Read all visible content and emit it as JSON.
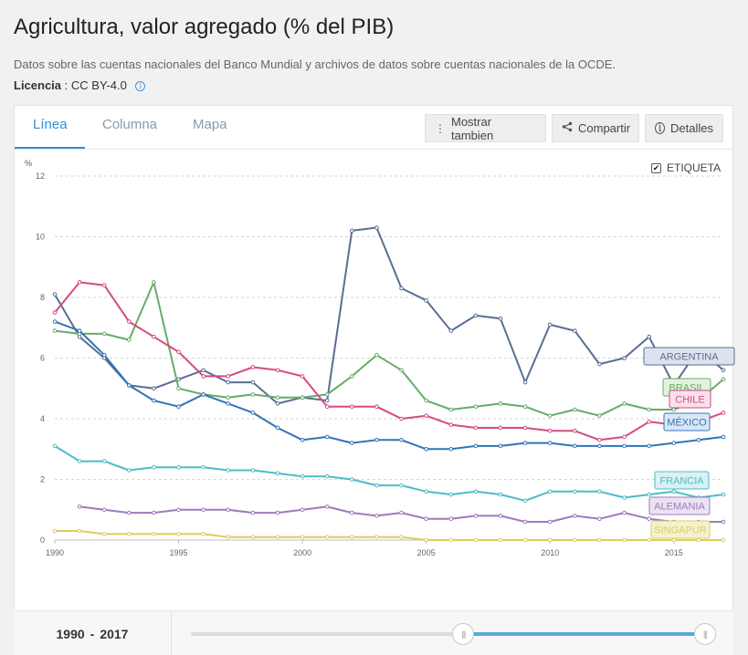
{
  "header": {
    "title": "Agricultura, valor agregado (% del PIB)",
    "description": "Datos sobre las cuentas nacionales del Banco Mundial y archivos de datos sobre cuentas nacionales de la OCDE.",
    "license_label": "Licencia",
    "license_value": ": CC BY-4.0"
  },
  "tabs": [
    {
      "label": "Línea",
      "active": true
    },
    {
      "label": "Columna",
      "active": false
    },
    {
      "label": "Mapa",
      "active": false
    }
  ],
  "toolbar": {
    "show_also": "Mostrar tambien",
    "share": "Compartir",
    "details": "Detalles"
  },
  "label_toggle": {
    "text": "ETIQUETA",
    "checked": true
  },
  "footer": {
    "range_start": "1990",
    "range_sep": "-",
    "range_end": "2017",
    "slider_start_fraction": 0.53,
    "slider_end_fraction": 1.0
  },
  "chart_data": {
    "type": "line",
    "title": "",
    "ylabel": "%",
    "xlabel": "",
    "ylim": [
      0,
      12
    ],
    "xlim": [
      1990,
      2017
    ],
    "yticks": [
      0,
      2,
      4,
      6,
      8,
      10,
      12
    ],
    "xticks": [
      1990,
      1995,
      2000,
      2005,
      2010,
      2015
    ],
    "grid": true,
    "x": [
      1990,
      1991,
      1992,
      1993,
      1994,
      1995,
      1996,
      1997,
      1998,
      1999,
      2000,
      2001,
      2002,
      2003,
      2004,
      2005,
      2006,
      2007,
      2008,
      2009,
      2010,
      2011,
      2012,
      2013,
      2014,
      2015,
      2016,
      2017
    ],
    "series": [
      {
        "name": "ARGENTINA",
        "color": "#5a6e94",
        "label_fill": "#dde3ee",
        "values": [
          8.1,
          6.7,
          6.0,
          5.1,
          5.0,
          5.3,
          5.6,
          5.2,
          5.2,
          4.5,
          4.7,
          4.6,
          10.2,
          10.3,
          8.3,
          7.9,
          6.9,
          7.4,
          7.3,
          5.2,
          7.1,
          6.9,
          5.8,
          6.0,
          6.7,
          5.1,
          6.3,
          5.6
        ]
      },
      {
        "name": "BRASIL",
        "color": "#67ab67",
        "label_fill": "#e3f1df",
        "values": [
          6.9,
          6.8,
          6.8,
          6.6,
          8.5,
          5.0,
          4.8,
          4.7,
          4.8,
          4.7,
          4.7,
          4.8,
          5.4,
          6.1,
          5.6,
          4.6,
          4.3,
          4.4,
          4.5,
          4.4,
          4.1,
          4.3,
          4.1,
          4.5,
          4.3,
          4.3,
          4.6,
          5.3
        ]
      },
      {
        "name": "CHILE",
        "color": "#d64a83",
        "label_fill": "#f9e0ea",
        "values": [
          7.5,
          8.5,
          8.4,
          7.2,
          6.7,
          6.2,
          5.4,
          5.4,
          5.7,
          5.6,
          5.4,
          4.4,
          4.4,
          4.4,
          4.0,
          4.1,
          3.8,
          3.7,
          3.7,
          3.7,
          3.6,
          3.6,
          3.3,
          3.4,
          3.9,
          3.8,
          3.9,
          4.2
        ]
      },
      {
        "name": "MÉXICO",
        "color": "#3274b8",
        "label_fill": "#d9e7f5",
        "values": [
          7.2,
          6.9,
          6.1,
          5.1,
          4.6,
          4.4,
          4.8,
          4.5,
          4.2,
          3.7,
          3.3,
          3.4,
          3.2,
          3.3,
          3.3,
          3.0,
          3.0,
          3.1,
          3.1,
          3.2,
          3.2,
          3.1,
          3.1,
          3.1,
          3.1,
          3.2,
          3.3,
          3.4
        ]
      },
      {
        "name": "FRANCIA",
        "color": "#4cbcc8",
        "label_fill": "#d9f1f3",
        "values": [
          3.1,
          2.6,
          2.6,
          2.3,
          2.4,
          2.4,
          2.4,
          2.3,
          2.3,
          2.2,
          2.1,
          2.1,
          2.0,
          1.8,
          1.8,
          1.6,
          1.5,
          1.6,
          1.5,
          1.3,
          1.6,
          1.6,
          1.6,
          1.4,
          1.5,
          1.6,
          1.4,
          1.5
        ]
      },
      {
        "name": "ALEMANIA",
        "color": "#9c7bbd",
        "label_fill": "#ebe3f3",
        "values": [
          null,
          1.1,
          1.0,
          0.9,
          0.9,
          1.0,
          1.0,
          1.0,
          0.9,
          0.9,
          1.0,
          1.1,
          0.9,
          0.8,
          0.9,
          0.7,
          0.7,
          0.8,
          0.8,
          0.6,
          0.6,
          0.8,
          0.7,
          0.9,
          0.7,
          0.6,
          0.6,
          0.6
        ]
      },
      {
        "name": "SINGAPUR",
        "color": "#d9cf5e",
        "label_fill": "#f4f1cf",
        "values": [
          0.3,
          0.3,
          0.2,
          0.2,
          0.2,
          0.2,
          0.2,
          0.1,
          0.1,
          0.1,
          0.1,
          0.1,
          0.1,
          0.1,
          0.1,
          0.0,
          0.0,
          0.0,
          0.0,
          0.0,
          0.0,
          0.0,
          0.0,
          0.0,
          0.0,
          0.0,
          0.0,
          0.0
        ]
      }
    ]
  }
}
